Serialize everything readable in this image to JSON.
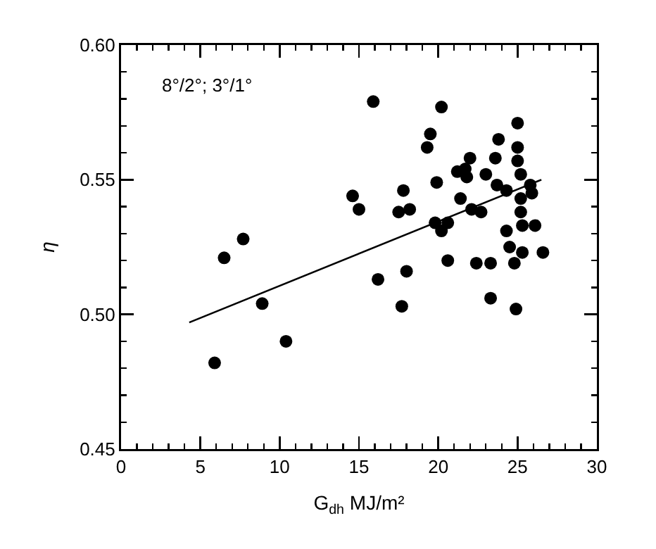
{
  "chart_data": {
    "type": "scatter",
    "xlabel": "G$_{dh}$ MJ/m²",
    "ylabel": "η",
    "annotations": [
      "8°/2°; 3°/1°"
    ],
    "xlim": [
      0,
      30
    ],
    "xticks": [
      0,
      5,
      10,
      15,
      20,
      25,
      30
    ],
    "ylim": [
      0.45,
      0.6
    ],
    "yticks": [
      {
        "value": 0.45,
        "label": "0.45"
      },
      {
        "value": 0.5,
        "label": "0.50"
      },
      {
        "value": 0.55,
        "label": "0.55"
      },
      {
        "value": 0.6,
        "label": "0.60"
      }
    ],
    "grid": false,
    "marker": "circle",
    "series": [
      {
        "color": "#000000",
        "x": [
          7.7,
          6.5,
          8.9,
          10.4,
          5.9,
          15.9,
          14.6,
          15.0,
          17.8,
          17.5,
          18.2,
          16.2,
          18.0,
          17.7,
          19.5,
          19.3,
          19.9,
          19.8,
          20.2,
          20.2,
          20.6,
          20.6,
          21.4,
          21.2,
          21.7,
          22.0,
          21.8,
          22.1,
          22.7,
          22.4,
          23.3,
          23.0,
          23.6,
          23.8,
          23.7,
          24.3,
          23.3,
          24.9,
          24.3,
          24.5,
          24.8,
          25.3,
          25.0,
          25.0,
          25.0,
          25.2,
          25.8,
          25.9,
          25.2,
          25.2,
          25.3,
          26.1,
          26.6
        ],
        "values": [
          0.528,
          0.521,
          0.504,
          0.49,
          0.482,
          0.579,
          0.544,
          0.539,
          0.546,
          0.538,
          0.539,
          0.513,
          0.516,
          0.503,
          0.567,
          0.562,
          0.549,
          0.534,
          0.577,
          0.531,
          0.534,
          0.52,
          0.543,
          0.553,
          0.554,
          0.558,
          0.551,
          0.539,
          0.538,
          0.519,
          0.519,
          0.552,
          0.558,
          0.565,
          0.548,
          0.546,
          0.506,
          0.502,
          0.531,
          0.525,
          0.519,
          0.523,
          0.571,
          0.562,
          0.557,
          0.552,
          0.548,
          0.545,
          0.543,
          0.538,
          0.533,
          0.533,
          0.523
        ]
      },
      {
        "type": "line",
        "color": "#000000",
        "x": [
          4.3,
          26.5
        ],
        "values": [
          0.497,
          0.55
        ],
        "marker": "none",
        "line_style": "solid"
      }
    ]
  }
}
